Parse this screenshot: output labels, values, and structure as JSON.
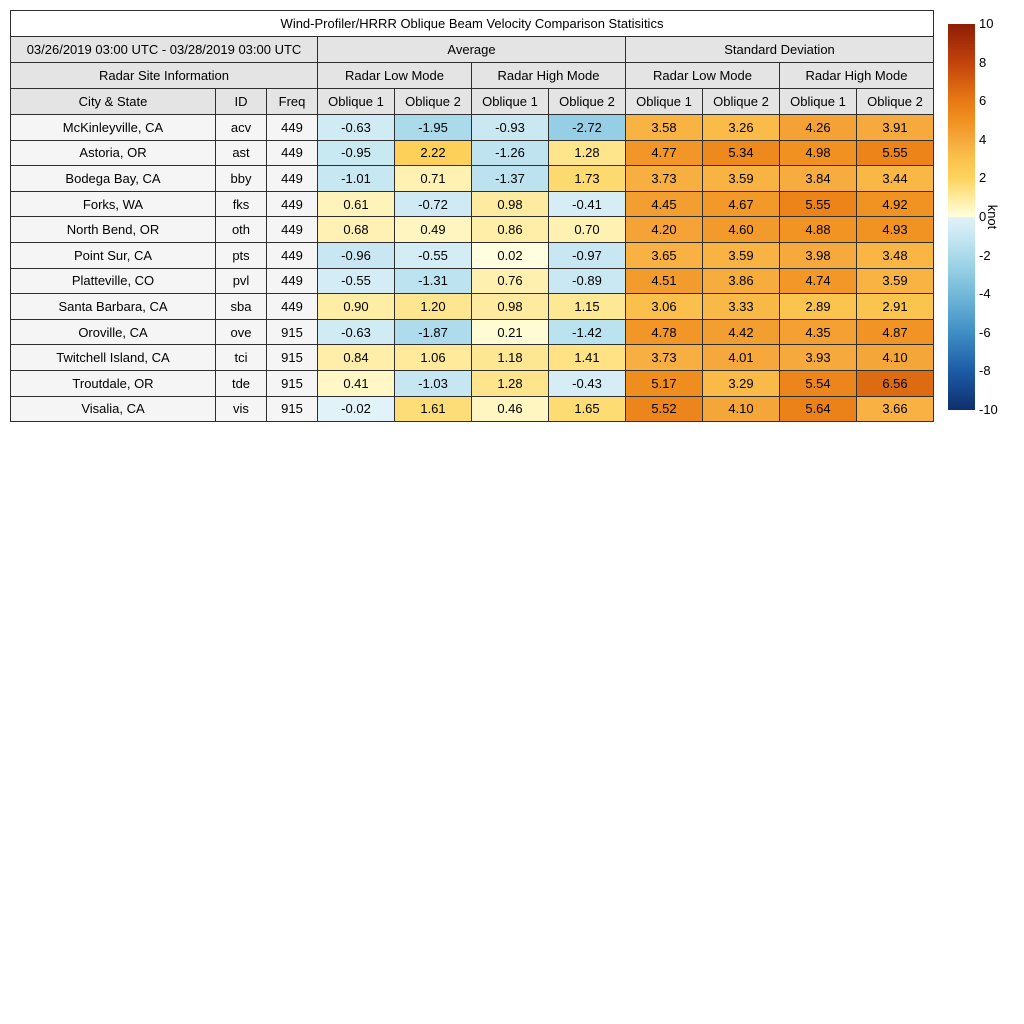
{
  "figure": {
    "title": "Wind-Profiler/HRRR Oblique Beam Velocity Comparison Statisitics",
    "date_range": "03/26/2019 03:00 UTC - 03/28/2019 03:00 UTC"
  },
  "headers": {
    "site_info": "Radar Site Information",
    "average": "Average",
    "std_dev": "Standard Deviation",
    "low_mode": "Radar Low Mode",
    "high_mode": "Radar High Mode",
    "city_state": "City & State",
    "id": "ID",
    "freq": "Freq",
    "oblique1": "Oblique 1",
    "oblique2": "Oblique 2"
  },
  "colors": {
    "header_bg": "#e4e4e4",
    "title_bg": "#ffffff",
    "site_bg": "#f5f5f5",
    "border": "#2e2e2e"
  },
  "chart_data": {
    "type": "table",
    "title": "Wind-Profiler/HRRR Oblique Beam Velocity Comparison Statisitics",
    "subtitle": "03/26/2019 03:00 UTC - 03/28/2019 03:00 UTC",
    "columns": [
      "City & State",
      "ID",
      "Freq",
      "Average Radar Low Mode Oblique 1",
      "Average Radar Low Mode Oblique 2",
      "Average Radar High Mode Oblique 1",
      "Average Radar High Mode Oblique 2",
      "Standard Deviation Radar Low Mode Oblique 1",
      "Standard Deviation Radar Low Mode Oblique 2",
      "Standard Deviation Radar High Mode Oblique 1",
      "Standard Deviation Radar High Mode Oblique 2"
    ],
    "rows": [
      {
        "city": "McKinleyville, CA",
        "id": "acv",
        "freq": "449",
        "values": [
          "-0.63",
          "-1.95",
          "-0.93",
          "-2.72",
          "3.58",
          "3.26",
          "4.26",
          "3.91"
        ]
      },
      {
        "city": "Astoria, OR",
        "id": "ast",
        "freq": "449",
        "values": [
          "-0.95",
          "2.22",
          "-1.26",
          "1.28",
          "4.77",
          "5.34",
          "4.98",
          "5.55"
        ]
      },
      {
        "city": "Bodega Bay, CA",
        "id": "bby",
        "freq": "449",
        "values": [
          "-1.01",
          "0.71",
          "-1.37",
          "1.73",
          "3.73",
          "3.59",
          "3.84",
          "3.44"
        ]
      },
      {
        "city": "Forks, WA",
        "id": "fks",
        "freq": "449",
        "values": [
          "0.61",
          "-0.72",
          "0.98",
          "-0.41",
          "4.45",
          "4.67",
          "5.55",
          "4.92"
        ]
      },
      {
        "city": "North Bend, OR",
        "id": "oth",
        "freq": "449",
        "values": [
          "0.68",
          "0.49",
          "0.86",
          "0.70",
          "4.20",
          "4.60",
          "4.88",
          "4.93"
        ]
      },
      {
        "city": "Point Sur, CA",
        "id": "pts",
        "freq": "449",
        "values": [
          "-0.96",
          "-0.55",
          "0.02",
          "-0.97",
          "3.65",
          "3.59",
          "3.98",
          "3.48"
        ]
      },
      {
        "city": "Platteville, CO",
        "id": "pvl",
        "freq": "449",
        "values": [
          "-0.55",
          "-1.31",
          "0.76",
          "-0.89",
          "4.51",
          "3.86",
          "4.74",
          "3.59"
        ]
      },
      {
        "city": "Santa Barbara, CA",
        "id": "sba",
        "freq": "449",
        "values": [
          "0.90",
          "1.20",
          "0.98",
          "1.15",
          "3.06",
          "3.33",
          "2.89",
          "2.91"
        ]
      },
      {
        "city": "Oroville, CA",
        "id": "ove",
        "freq": "915",
        "values": [
          "-0.63",
          "-1.87",
          "0.21",
          "-1.42",
          "4.78",
          "4.42",
          "4.35",
          "4.87"
        ]
      },
      {
        "city": "Twitchell Island, CA",
        "id": "tci",
        "freq": "915",
        "values": [
          "0.84",
          "1.06",
          "1.18",
          "1.41",
          "3.73",
          "4.01",
          "3.93",
          "4.10"
        ]
      },
      {
        "city": "Troutdale, OR",
        "id": "tde",
        "freq": "915",
        "values": [
          "0.41",
          "-1.03",
          "1.28",
          "-0.43",
          "5.17",
          "3.29",
          "5.54",
          "6.56"
        ]
      },
      {
        "city": "Visalia, CA",
        "id": "vis",
        "freq": "915",
        "values": [
          "-0.02",
          "1.61",
          "0.46",
          "1.65",
          "5.52",
          "4.10",
          "5.64",
          "3.66"
        ]
      }
    ],
    "colorbar": {
      "label": "knot",
      "min": -10,
      "max": 10,
      "ticks": [
        "10",
        "8",
        "6",
        "4",
        "2",
        "0",
        "-2",
        "-4",
        "-6",
        "-8",
        "-10"
      ]
    },
    "colormap": {
      "positive": [
        [
          0,
          "#ffffe0"
        ],
        [
          1,
          "#feeb9e"
        ],
        [
          2,
          "#fdd45e"
        ],
        [
          3,
          "#fbc24d"
        ],
        [
          4,
          "#f6a83c"
        ],
        [
          5,
          "#f09121"
        ],
        [
          6,
          "#e87a15"
        ],
        [
          8,
          "#c2430b"
        ],
        [
          10,
          "#8e1d06"
        ]
      ],
      "negative": [
        [
          0,
          "#e2f2f8"
        ],
        [
          -1,
          "#c7e7f2"
        ],
        [
          -2,
          "#aadaeb"
        ],
        [
          -3,
          "#8ecbe2"
        ],
        [
          -4,
          "#72b8d9"
        ],
        [
          -5,
          "#58a3cf"
        ],
        [
          -6,
          "#3f8ec5"
        ],
        [
          -8,
          "#1c5ba6"
        ],
        [
          -10,
          "#0f2f6d"
        ]
      ]
    }
  }
}
